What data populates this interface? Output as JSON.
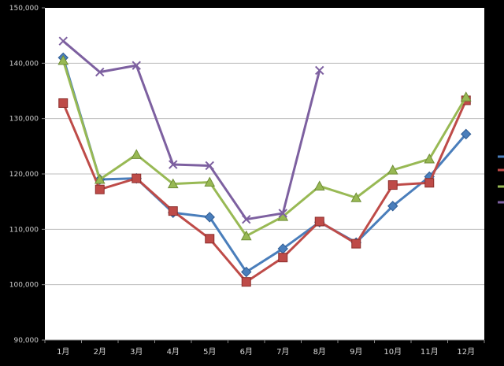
{
  "chart_data": {
    "type": "line",
    "categories": [
      "1月",
      "2月",
      "3月",
      "4月",
      "5月",
      "6月",
      "7月",
      "8月",
      "9月",
      "10月",
      "11月",
      "12月"
    ],
    "y_ticks": [
      "90,000",
      "100,000",
      "110,000",
      "120,000",
      "130,000",
      "140,000",
      "150,000"
    ],
    "ylim": [
      90000,
      150000
    ],
    "grid": true,
    "legend": "right (cut off)",
    "series": [
      {
        "color": "#4a7ebb",
        "marker": "diamond",
        "values": [
          141000,
          119000,
          119200,
          113000,
          112200,
          102300,
          106500,
          111300,
          107600,
          114200,
          119500,
          127200
        ]
      },
      {
        "color": "#be4b48",
        "marker": "square",
        "values": [
          132800,
          117200,
          119200,
          113300,
          108300,
          100500,
          104900,
          111400,
          107400,
          118000,
          118400,
          133300
        ]
      },
      {
        "color": "#98b954",
        "marker": "triangle",
        "values": [
          140500,
          119000,
          123500,
          118200,
          118500,
          108800,
          112300,
          117800,
          115700,
          120700,
          122700,
          133900
        ]
      },
      {
        "color": "#7d60a0",
        "marker": "x",
        "values": [
          144000,
          138400,
          139600,
          121700,
          121500,
          111800,
          112900,
          138700,
          null,
          null,
          null,
          null
        ]
      }
    ]
  }
}
